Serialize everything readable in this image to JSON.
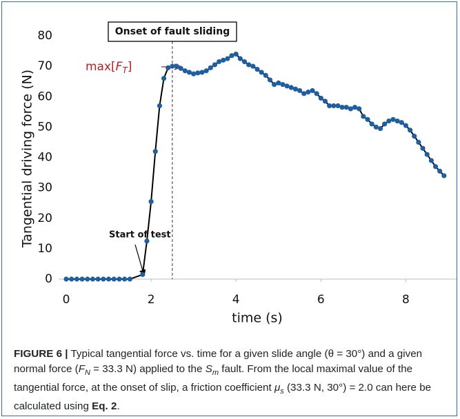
{
  "chart_data": {
    "type": "line",
    "xlabel": "time  (s)",
    "ylabel": "Tangential driving force  (N)",
    "x": [
      0,
      0.125,
      0.25,
      0.375,
      0.5,
      0.625,
      0.75,
      0.875,
      1.0,
      1.125,
      1.25,
      1.375,
      1.5,
      1.8,
      1.9,
      2.0,
      2.1,
      2.2,
      2.3,
      2.4,
      2.5,
      2.6,
      2.7,
      2.8,
      2.9,
      3.0,
      3.1,
      3.2,
      3.3,
      3.4,
      3.5,
      3.6,
      3.7,
      3.8,
      3.9,
      4.0,
      4.1,
      4.2,
      4.3,
      4.4,
      4.5,
      4.6,
      4.7,
      4.8,
      4.9,
      5.0,
      5.1,
      5.2,
      5.3,
      5.4,
      5.5,
      5.6,
      5.7,
      5.8,
      5.9,
      6.0,
      6.1,
      6.2,
      6.3,
      6.4,
      6.5,
      6.6,
      6.7,
      6.8,
      6.9,
      7.0,
      7.1,
      7.2,
      7.3,
      7.4,
      7.5,
      7.6,
      7.7,
      7.8,
      7.9,
      8.0,
      8.1,
      8.2,
      8.3,
      8.4,
      8.5,
      8.6,
      8.7,
      8.8,
      8.9
    ],
    "series": [
      {
        "color": "#1f5fa0",
        "line_color": "#000000",
        "values": [
          0,
          0,
          0,
          0,
          0,
          0,
          0,
          0,
          0,
          0,
          0,
          0,
          0,
          1.5,
          12.5,
          25.5,
          42,
          57,
          66,
          69.5,
          70,
          70,
          69.3,
          68.5,
          68,
          67.5,
          67.8,
          68,
          68.5,
          69.5,
          70.5,
          71.5,
          72,
          72.5,
          73.5,
          74,
          72.5,
          71.5,
          70.5,
          70,
          69,
          68,
          67,
          65.5,
          64,
          64.5,
          64,
          63.5,
          63,
          62.5,
          62,
          61,
          61.5,
          62,
          61,
          59.5,
          58.5,
          57,
          57,
          57,
          56.5,
          56.5,
          56,
          56.5,
          56,
          53.5,
          52.5,
          51,
          50,
          49.5,
          51,
          52,
          52.5,
          52,
          51.5,
          50.5,
          49,
          47,
          45,
          43,
          41,
          39,
          37,
          35.5,
          34
        ]
      }
    ],
    "xlim": [
      0,
      9
    ],
    "ylim": [
      0,
      80
    ],
    "xticks": [
      0,
      2,
      4,
      6,
      8
    ],
    "yticks": [
      0,
      10,
      20,
      30,
      40,
      50,
      60,
      70,
      80
    ],
    "annotations": {
      "onset": {
        "text": "Onset of fault sliding",
        "x": 2.5
      },
      "max": {
        "parts": [
          "max[",
          "F",
          "T",
          "]"
        ],
        "color": "#b22222"
      },
      "start": {
        "text": "Start of test"
      }
    }
  },
  "caption": [
    {
      "t": "FIGURE 6 |",
      "s": "b"
    },
    {
      "t": " Typical tangential force vs. time for a given slide angle (θ = 30°) and a given normal force ("
    },
    {
      "t": "F",
      "s": "i"
    },
    {
      "t": "N",
      "s": "sub"
    },
    {
      "t": " = 33.3 N) applied to the "
    },
    {
      "t": "S",
      "s": "i"
    },
    {
      "t": "m",
      "s": "sub"
    },
    {
      "t": " fault. From the local maximal value of the tangential force, at the onset of slip, a friction coefficient "
    },
    {
      "t": "μ",
      "s": "i"
    },
    {
      "t": "s",
      "s": "sub"
    },
    {
      "t": " (33.3 N, 30°) = 2.0 can here be calculated using "
    },
    {
      "t": "Eq. 2",
      "s": "b"
    },
    {
      "t": "."
    }
  ]
}
